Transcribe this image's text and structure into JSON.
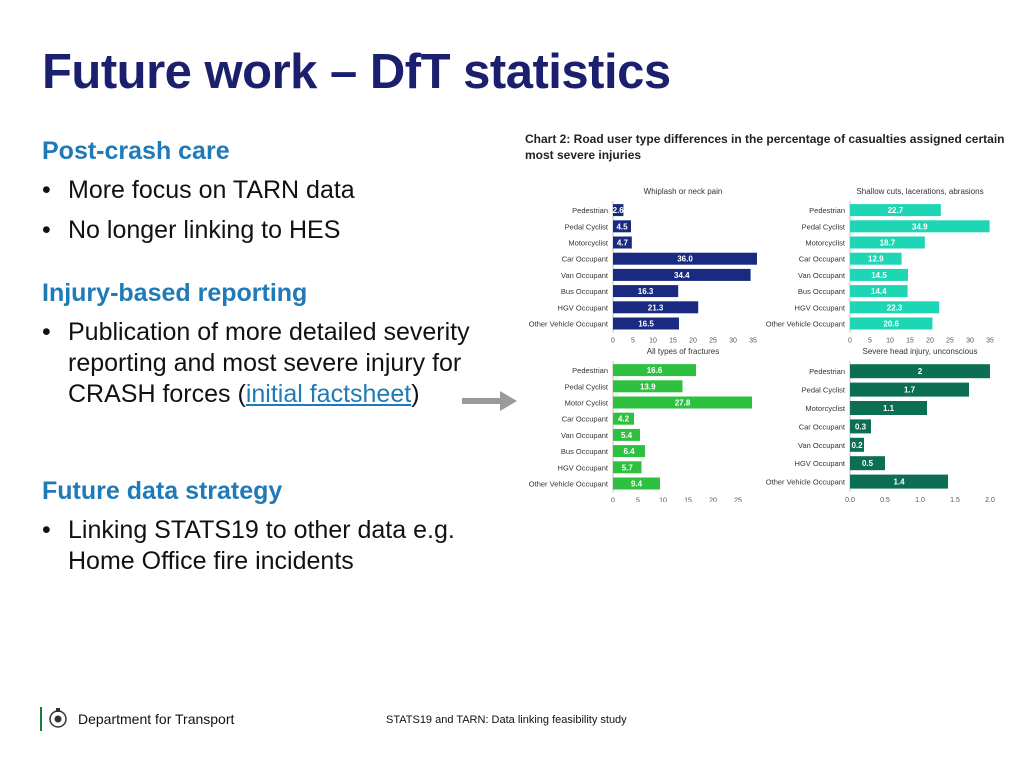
{
  "slide": {
    "title": "Future work – DfT statistics",
    "sections": [
      {
        "heading": "Post-crash care",
        "bullets": [
          "More focus on TARN data",
          "No longer linking to HES"
        ]
      },
      {
        "heading": "Injury-based reporting",
        "bullet_text": "Publication of more detailed severity reporting and most severe injury for CRASH forces (",
        "bullet_link": "initial factsheet",
        "bullet_end": ")"
      },
      {
        "heading": "Future data strategy",
        "bullets": [
          "Linking STATS19 to other data e.g. Home Office fire incidents"
        ]
      }
    ],
    "footer": {
      "organisation": "Department for Transport",
      "note": "STATS19 and TARN: Data linking feasibility study"
    }
  },
  "colors": {
    "title": "#1a1f6e",
    "heading": "#1f7ab8",
    "arrow": "#9a9a9a",
    "panels": [
      "#1a2a80",
      "#1ed6b4",
      "#2ec13f",
      "#0c6e53"
    ]
  },
  "chart_data": {
    "title": "Chart 2: Road user type differences in the percentage of casualties assigned certain most severe injuries",
    "type": "bar",
    "orientation": "horizontal",
    "panels": [
      {
        "subtitle": "Whiplash or neck pain",
        "color": "#1a2a80",
        "categories": [
          "Pedestrian",
          "Pedal Cyclist",
          "Motorcyclist",
          "Car Occupant",
          "Van Occupant",
          "Bus Occupant",
          "HGV Occupant",
          "Other Vehicle Occupant"
        ],
        "values": [
          2.6,
          4.5,
          4.7,
          36.0,
          34.4,
          16.3,
          21.3,
          16.5
        ],
        "labels": [
          "2.6",
          "4.5",
          "4.7",
          "36.0",
          "34.4",
          "16.3",
          "21.3",
          "16.5"
        ],
        "xlim": [
          0,
          35
        ],
        "ticks": [
          "0",
          "5",
          "10",
          "15",
          "20",
          "25",
          "30",
          "35"
        ],
        "tick_values": [
          0,
          5,
          10,
          15,
          20,
          25,
          30,
          35
        ]
      },
      {
        "subtitle": "Shallow cuts, lacerations, abrasions",
        "color": "#1ed6b4",
        "categories": [
          "Pedestrian",
          "Pedal Cyclist",
          "Motorcyclist",
          "Car Occupant",
          "Van Occupant",
          "Bus Occupant",
          "HGV Occupant",
          "Other Vehicle Occupant"
        ],
        "values": [
          22.7,
          34.9,
          18.7,
          12.9,
          14.5,
          14.4,
          22.3,
          20.6
        ],
        "labels": [
          "22.7",
          "34.9",
          "18.7",
          "12.9",
          "14.5",
          "14.4",
          "22.3",
          "20.6"
        ],
        "xlim": [
          0,
          35
        ],
        "ticks": [
          "0",
          "5",
          "10",
          "15",
          "20",
          "25",
          "30",
          "35"
        ],
        "tick_values": [
          0,
          5,
          10,
          15,
          20,
          25,
          30,
          35
        ]
      },
      {
        "subtitle": "All types of fractures",
        "color": "#2ec13f",
        "categories": [
          "Pedestrian",
          "Pedal Cyclist",
          "Motor Cyclist",
          "Car Occupant",
          "Van Occupant",
          "Bus Occupant",
          "HGV Occupant",
          "Other Vehicle Occupant"
        ],
        "values": [
          16.6,
          13.9,
          27.8,
          4.2,
          5.4,
          6.4,
          5.7,
          9.4
        ],
        "labels": [
          "16.6",
          "13.9",
          "27.8",
          "4.2",
          "5.4",
          "6.4",
          "5.7",
          "9.4"
        ],
        "xlim": [
          0,
          28
        ],
        "ticks": [
          "0",
          "5",
          "10",
          "15",
          "20",
          "25"
        ],
        "tick_values": [
          0,
          5,
          10,
          15,
          20,
          25
        ]
      },
      {
        "subtitle": "Severe head injury, unconscious",
        "color": "#0c6e53",
        "categories": [
          "Pedestrian",
          "Pedal Cyclist",
          "Motorcyclist",
          "Car Occupant",
          "Van Occupant",
          "HGV Occupant",
          "Other Vehicle Occupant"
        ],
        "values": [
          2,
          1.7,
          1.1,
          0.3,
          0.2,
          0.5,
          1.4
        ],
        "labels": [
          "2",
          "1.7",
          "1.1",
          "0.3",
          "0.2",
          "0.5",
          "1.4"
        ],
        "xlim": [
          0,
          2
        ],
        "ticks": [
          "0.0",
          "0.5",
          "1.0",
          "1.5",
          "2.0"
        ],
        "tick_values": [
          0,
          0.5,
          1,
          1.5,
          2
        ]
      }
    ]
  }
}
